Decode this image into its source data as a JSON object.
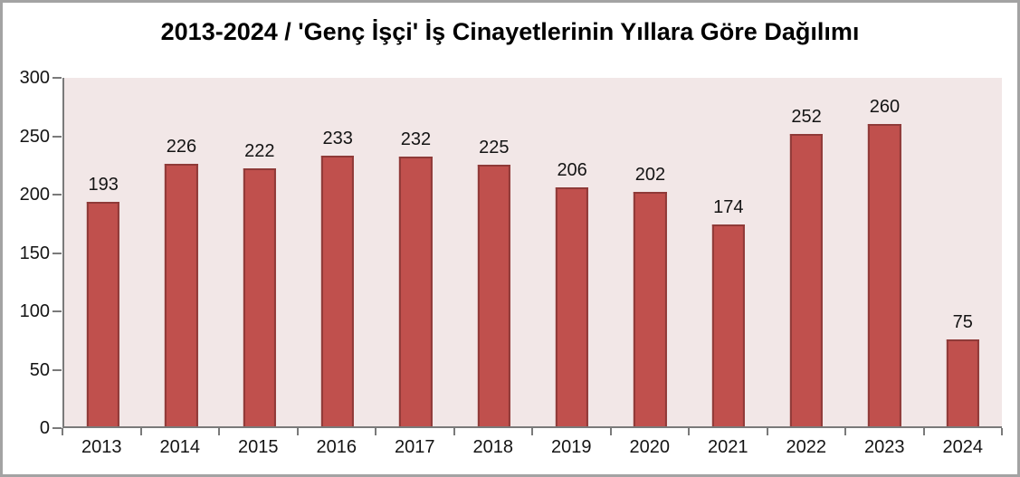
{
  "chart_data": {
    "type": "bar",
    "title": "2013-2024 / 'Genç İşçi' İş Cinayetlerinin Yıllara Göre Dağılımı",
    "categories": [
      "2013",
      "2014",
      "2015",
      "2016",
      "2017",
      "2018",
      "2019",
      "2020",
      "2021",
      "2022",
      "2023",
      "2024"
    ],
    "values": [
      193,
      226,
      222,
      233,
      232,
      225,
      206,
      202,
      174,
      252,
      260,
      75
    ],
    "xlabel": "",
    "ylabel": "",
    "ylim": [
      0,
      300
    ],
    "yticks": [
      0,
      50,
      100,
      150,
      200,
      250,
      300
    ],
    "grid": false,
    "legend": false,
    "colors": {
      "bar_fill": "#c0504d",
      "bar_border": "#8f3a38",
      "plot_background": "#f2e7e7",
      "axis_line": "#7a7a7a",
      "text": "#141414",
      "frame_border": "#a3a3a3",
      "page_background": "#ffffff"
    }
  }
}
